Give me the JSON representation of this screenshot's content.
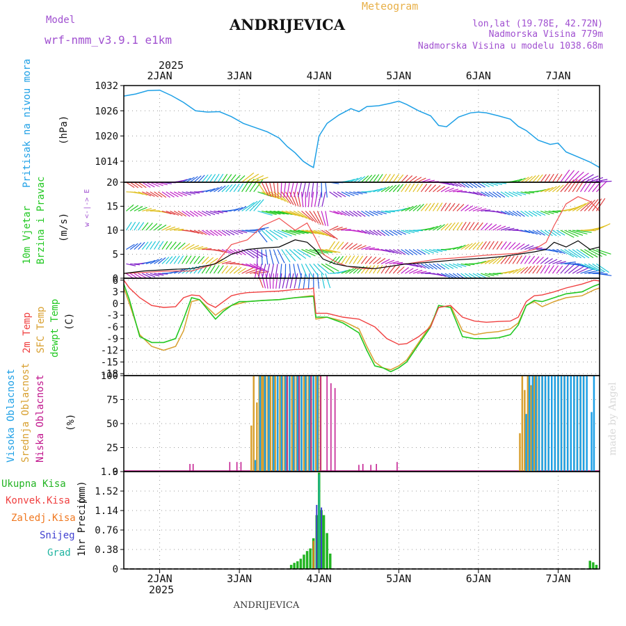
{
  "header": {
    "model_label": "Model",
    "model_name": "wrf-nmm_v3.9.1 e1km",
    "station": "ANDRIJEVICA",
    "meteogram": "Meteogram",
    "coords": "lon,lat (19.78E, 42.72N)",
    "elevation": "Nadmorska Visina 779m",
    "model_elevation": "Nadmorska Visina u modelu 1038.68m",
    "year_top": "2025",
    "year_bottom": "2025",
    "footer_station": "ANDRIJEVICA",
    "watermark": "made by Angel"
  },
  "colors": {
    "pressure": "#1ea0e6",
    "temp2m": "#f04040",
    "sfc": "#d8a030",
    "dewpt": "#22c822",
    "high_cloud": "#1ea0e6",
    "mid_cloud": "#d8a030",
    "low_cloud": "#c0148c",
    "total_precip": "#22b422",
    "conv_precip": "#f04040",
    "frozen": "#f07820",
    "snow": "#4040d0",
    "hail": "#20b4a0",
    "title_purple": "#a050d0",
    "meteogram_orange": "#e8b048"
  },
  "chart_data": [
    {
      "type": "line",
      "name": "pressure",
      "ylabel_1": "Pritisak na nivou mora",
      "ylabel_2": "(hPa)",
      "x_axis": "days 2025-01-01 to 2025-01-07 (day-of-month units)",
      "xlim": [
        1.55,
        7.52
      ],
      "ylim": [
        1009,
        1032
      ],
      "yticks": [
        1014,
        1020,
        1026,
        1032
      ],
      "grid": true,
      "series": [
        {
          "x": [
            1.55,
            1.7,
            1.85,
            2.0,
            2.15,
            2.3,
            2.45,
            2.6,
            2.75,
            2.9,
            3.05,
            3.2,
            3.35,
            3.5,
            3.6,
            3.7,
            3.8,
            3.88,
            3.93,
            4.0,
            4.1,
            4.25,
            4.4,
            4.5,
            4.6,
            4.75,
            4.9,
            5.0,
            5.1,
            5.25,
            5.4,
            5.5,
            5.6,
            5.75,
            5.9,
            6.0,
            6.1,
            6.25,
            6.4,
            6.5,
            6.6,
            6.75,
            6.9,
            7.0,
            7.1,
            7.25,
            7.4,
            7.52
          ],
          "y": [
            1029.5,
            1030.0,
            1030.8,
            1030.9,
            1029.6,
            1028.0,
            1026.0,
            1025.7,
            1025.8,
            1024.6,
            1023.0,
            1022.0,
            1021.0,
            1019.5,
            1017.5,
            1016.0,
            1014.0,
            1013.0,
            1012.5,
            1020.0,
            1023.0,
            1025.0,
            1026.5,
            1025.8,
            1027.0,
            1027.2,
            1027.8,
            1028.3,
            1027.5,
            1026.0,
            1024.8,
            1022.5,
            1022.2,
            1024.5,
            1025.5,
            1025.7,
            1025.5,
            1024.8,
            1024.0,
            1022.3,
            1021.3,
            1019.0,
            1018.0,
            1018.3,
            1016.2,
            1015.0,
            1013.8,
            1012.5
          ]
        }
      ]
    },
    {
      "type": "line",
      "name": "wind",
      "ylabel_1": "10m Vjetar",
      "ylabel_2": "Brzina i Pravac",
      "ylabel_3": "(m/s)",
      "legend_arrows": "w <-|-> E",
      "ylim": [
        0,
        20
      ],
      "yticks": [
        0,
        5,
        10,
        15,
        20
      ],
      "grid": true,
      "barb_rows": [
        1,
        3,
        6,
        10,
        14,
        18,
        20
      ],
      "series": [
        {
          "name": "speed",
          "x": [
            1.55,
            1.8,
            2.1,
            2.4,
            2.7,
            2.9,
            3.1,
            3.3,
            3.5,
            3.7,
            3.85,
            3.95,
            4.05,
            4.2,
            4.35,
            4.5,
            4.7,
            4.9,
            5.1,
            5.3,
            5.5,
            5.7,
            5.9,
            6.1,
            6.3,
            6.5,
            6.7,
            6.85,
            6.95,
            7.1,
            7.25,
            7.4,
            7.52
          ],
          "y": [
            1.0,
            1.5,
            1.8,
            2.0,
            3.0,
            5.0,
            6.0,
            6.3,
            6.5,
            8.0,
            7.5,
            6.0,
            4.0,
            3.0,
            2.5,
            2.3,
            2.0,
            2.5,
            3.0,
            3.2,
            3.5,
            3.8,
            4.0,
            4.2,
            4.5,
            5.0,
            5.5,
            6.0,
            7.5,
            6.5,
            7.8,
            6.0,
            6.5
          ]
        },
        {
          "name": "gust",
          "x": [
            1.55,
            1.8,
            2.1,
            2.4,
            2.7,
            2.9,
            3.1,
            3.3,
            3.5,
            3.7,
            3.85,
            3.95,
            4.05,
            4.2,
            4.35,
            4.5,
            4.7,
            4.9,
            5.1,
            5.3,
            5.5,
            5.7,
            5.9,
            6.1,
            6.3,
            6.5,
            6.7,
            6.85,
            6.95,
            7.1,
            7.25,
            7.4,
            7.52
          ],
          "y": [
            1.0,
            1.2,
            1.5,
            1.5,
            3.0,
            7.0,
            8.0,
            11.0,
            12.5,
            10.0,
            11.5,
            8.5,
            5.0,
            3.5,
            2.5,
            2.0,
            2.0,
            2.5,
            3.0,
            3.5,
            4.0,
            4.2,
            4.5,
            4.8,
            5.0,
            5.2,
            6.0,
            7.5,
            11.0,
            15.5,
            17.0,
            16.0,
            14.0
          ]
        }
      ]
    },
    {
      "type": "line",
      "name": "temperature",
      "ylabel_1": "2m Temp",
      "ylabel_2": "SFC Temp",
      "ylabel_3": "dewpt Temp",
      "ylabel_4": "(C)",
      "ylim": [
        -18.5,
        6.5
      ],
      "yticks": [
        6,
        3,
        0,
        -3,
        -6,
        -9,
        -12,
        -15,
        -18
      ],
      "grid": true,
      "series": [
        {
          "name": "2m Temp",
          "x": [
            1.55,
            1.62,
            1.75,
            1.9,
            2.05,
            2.2,
            2.3,
            2.4,
            2.5,
            2.6,
            2.7,
            2.8,
            2.9,
            3.0,
            3.1,
            3.3,
            3.5,
            3.7,
            3.9,
            3.93,
            3.96,
            4.1,
            4.3,
            4.5,
            4.7,
            4.85,
            5.0,
            5.1,
            5.25,
            5.4,
            5.5,
            5.65,
            5.8,
            5.95,
            6.1,
            6.25,
            6.4,
            6.5,
            6.6,
            6.7,
            6.8,
            6.95,
            7.1,
            7.3,
            7.45,
            7.52
          ],
          "y": [
            6.0,
            4.0,
            1.5,
            -0.5,
            -1.0,
            -0.8,
            1.5,
            2.2,
            2.0,
            0.0,
            -1.0,
            0.5,
            2.0,
            2.5,
            2.8,
            3.0,
            3.2,
            3.6,
            3.8,
            4.0,
            -2.5,
            -2.5,
            -3.5,
            -4.0,
            -6.0,
            -9.0,
            -10.5,
            -10.3,
            -8.5,
            -6.0,
            -1.0,
            -0.5,
            -3.5,
            -4.5,
            -4.8,
            -4.6,
            -4.5,
            -3.5,
            0.5,
            2.0,
            2.2,
            3.0,
            4.0,
            5.0,
            6.0,
            5.8
          ]
        },
        {
          "name": "SFC Temp",
          "x": [
            1.55,
            1.62,
            1.75,
            1.9,
            2.05,
            2.2,
            2.3,
            2.4,
            2.5,
            2.6,
            2.7,
            2.8,
            2.9,
            3.0,
            3.1,
            3.3,
            3.5,
            3.7,
            3.9,
            3.93,
            3.96,
            4.1,
            4.3,
            4.5,
            4.6,
            4.7,
            4.8,
            4.9,
            5.0,
            5.1,
            5.25,
            5.4,
            5.5,
            5.65,
            5.8,
            5.95,
            6.1,
            6.25,
            6.4,
            6.5,
            6.6,
            6.7,
            6.8,
            6.95,
            7.1,
            7.3,
            7.45,
            7.52
          ],
          "y": [
            4.0,
            0.0,
            -8.0,
            -11.0,
            -12.0,
            -11.0,
            -7.0,
            0.5,
            1.0,
            -1.0,
            -3.0,
            -1.5,
            -0.5,
            0.0,
            0.5,
            0.8,
            1.0,
            1.5,
            2.0,
            2.0,
            -4.0,
            -3.5,
            -4.5,
            -6.5,
            -11.0,
            -15.0,
            -16.5,
            -17.0,
            -16.0,
            -14.5,
            -10.0,
            -5.5,
            -1.0,
            -0.5,
            -7.0,
            -8.0,
            -7.5,
            -7.2,
            -6.5,
            -5.0,
            -0.5,
            0.5,
            -0.8,
            0.5,
            1.5,
            2.0,
            3.5,
            4.0
          ]
        },
        {
          "name": "dewpt Temp",
          "x": [
            1.55,
            1.62,
            1.75,
            1.9,
            2.05,
            2.2,
            2.3,
            2.4,
            2.5,
            2.6,
            2.7,
            2.8,
            2.9,
            3.0,
            3.1,
            3.3,
            3.5,
            3.7,
            3.9,
            3.93,
            3.96,
            4.1,
            4.3,
            4.5,
            4.6,
            4.7,
            4.8,
            4.9,
            5.0,
            5.1,
            5.25,
            5.4,
            5.5,
            5.65,
            5.8,
            5.95,
            6.1,
            6.25,
            6.4,
            6.5,
            6.6,
            6.7,
            6.8,
            6.95,
            7.1,
            7.3,
            7.45,
            7.52
          ],
          "y": [
            5.0,
            1.0,
            -8.5,
            -10.0,
            -10.0,
            -9.0,
            -4.0,
            1.5,
            1.0,
            -1.5,
            -4.0,
            -2.0,
            -0.5,
            0.5,
            0.5,
            0.8,
            1.0,
            1.5,
            1.8,
            1.8,
            -3.5,
            -3.5,
            -5.0,
            -7.5,
            -12.0,
            -16.0,
            -16.5,
            -17.5,
            -16.5,
            -15.0,
            -10.5,
            -6.0,
            -0.5,
            -1.0,
            -8.5,
            -9.0,
            -9.0,
            -8.8,
            -8.0,
            -5.5,
            -0.5,
            0.8,
            0.5,
            1.5,
            2.5,
            3.0,
            4.5,
            5.0
          ]
        }
      ]
    },
    {
      "type": "bar",
      "name": "cloud_cover",
      "ylabel_1": "Visoka Oblacnost",
      "ylabel_2": "Srednja Oblacnost",
      "ylabel_3": "Niska Oblacnost",
      "ylabel_4": "(%)",
      "ylim": [
        0,
        100
      ],
      "yticks": [
        0,
        25,
        50,
        75,
        100
      ],
      "grid": true,
      "mid_bars": {
        "x": [
          3.15,
          3.18,
          3.22,
          3.25,
          3.28,
          3.3,
          3.33,
          3.36,
          3.39,
          3.42,
          3.45,
          3.48,
          3.51,
          3.54,
          3.57,
          3.6,
          3.63,
          3.66,
          3.69,
          3.72,
          3.75,
          3.78,
          3.81,
          3.84,
          3.87,
          3.9,
          3.93,
          3.96,
          3.99,
          4.02,
          6.52,
          6.55,
          6.58,
          6.62,
          6.66,
          6.7,
          6.73,
          6.76,
          6.8,
          6.84,
          6.88,
          6.92,
          6.96,
          7.0,
          7.04,
          7.08,
          7.12,
          7.16,
          7.2,
          7.24,
          7.28,
          7.32
        ],
        "y": [
          48,
          100,
          72,
          100,
          100,
          100,
          100,
          100,
          100,
          100,
          100,
          100,
          100,
          100,
          100,
          100,
          100,
          100,
          100,
          100,
          100,
          100,
          100,
          100,
          100,
          100,
          100,
          100,
          100,
          100,
          40,
          100,
          85,
          100,
          90,
          100,
          100,
          100,
          100,
          95,
          100,
          100,
          100,
          100,
          100,
          100,
          100,
          100,
          100,
          100,
          100,
          100
        ]
      },
      "high_bars": {
        "x": [
          3.2,
          3.26,
          3.32,
          3.37,
          3.43,
          3.48,
          3.53,
          3.58,
          3.63,
          3.68,
          3.73,
          3.78,
          3.83,
          3.88,
          3.93,
          3.98,
          6.6,
          6.64,
          6.68,
          6.72,
          6.76,
          6.8,
          6.84,
          6.88,
          6.92,
          6.96,
          7.0,
          7.04,
          7.08,
          7.12,
          7.16,
          7.2,
          7.24,
          7.28,
          7.32,
          7.36,
          7.42,
          7.45
        ],
        "y": [
          12,
          100,
          100,
          100,
          100,
          100,
          100,
          100,
          100,
          100,
          100,
          100,
          100,
          100,
          100,
          100,
          60,
          100,
          100,
          100,
          100,
          100,
          100,
          100,
          100,
          100,
          100,
          100,
          100,
          100,
          100,
          100,
          100,
          100,
          100,
          100,
          62,
          100
        ]
      },
      "low_bars": {
        "x": [
          2.38,
          2.42,
          2.88,
          2.97,
          3.02,
          3.6,
          3.75,
          3.9,
          4.02,
          4.1,
          4.15,
          4.2,
          4.5,
          4.55,
          4.65,
          4.72,
          4.98
        ],
        "y": [
          8,
          8,
          10,
          10,
          10,
          100,
          100,
          100,
          100,
          100,
          92,
          87,
          7,
          8,
          7,
          8,
          10
        ]
      }
    },
    {
      "type": "bar",
      "name": "precipitation",
      "ylabel_1": "1hr Precip",
      "ylabel_2": "(mm)",
      "ylim": [
        0,
        1.9
      ],
      "yticks": [
        0,
        0.38,
        0.76,
        1.14,
        1.52,
        1.9
      ],
      "grid": true,
      "legend": [
        "Ukupna Kisa",
        "Konvek.Kisa",
        "Zaledj.Kisa",
        "Snijeg",
        "Grad"
      ],
      "total_bars": {
        "x": [
          3.65,
          3.69,
          3.73,
          3.77,
          3.81,
          3.85,
          3.89,
          3.93,
          3.97,
          4.0,
          4.03,
          4.06,
          4.1,
          4.14,
          7.4,
          7.44,
          7.48
        ],
        "y": [
          0.08,
          0.12,
          0.15,
          0.2,
          0.28,
          0.35,
          0.4,
          0.6,
          1.05,
          1.88,
          1.15,
          1.05,
          0.7,
          0.3,
          0.16,
          0.13,
          0.08
        ]
      },
      "snow_bars": {
        "x": [
          3.97,
          4.03
        ],
        "y": [
          1.25,
          1.2
        ]
      },
      "hail_bars": {
        "x": [
          4.0
        ],
        "y": [
          1.85
        ]
      },
      "frozen_bars": {
        "x": [
          3.93
        ],
        "y": [
          0.55
        ]
      }
    }
  ],
  "x_axis": {
    "labels": [
      "2JAN",
      "3JAN",
      "4JAN",
      "5JAN",
      "6JAN",
      "7JAN"
    ],
    "days": [
      2,
      3,
      4,
      5,
      6,
      7
    ]
  }
}
